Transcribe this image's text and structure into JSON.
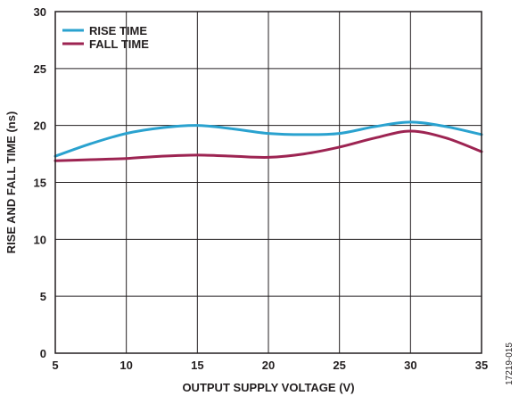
{
  "chart_data": {
    "type": "line",
    "xlabel": "OUTPUT SUPPLY VOLTAGE (V)",
    "ylabel": "RISE AND FALL TIME (ns)",
    "xlim": [
      5,
      35
    ],
    "ylim": [
      0,
      30
    ],
    "xticks": [
      "5",
      "10",
      "15",
      "20",
      "25",
      "30",
      "35"
    ],
    "yticks": [
      "0",
      "5",
      "10",
      "15",
      "20",
      "25",
      "30"
    ],
    "grid": true,
    "legend_position": "top-left",
    "figure_id": "17219-015",
    "series": [
      {
        "name": "RISE TIME",
        "color": "#2aa2cf",
        "x": [
          5,
          7.5,
          10,
          12.5,
          15,
          17.5,
          20,
          22.5,
          25,
          27.5,
          30,
          32.5,
          35
        ],
        "y": [
          17.3,
          18.4,
          19.3,
          19.8,
          20.0,
          19.7,
          19.3,
          19.2,
          19.3,
          19.9,
          20.3,
          19.9,
          19.2
        ]
      },
      {
        "name": "FALL TIME",
        "color": "#9d2452",
        "x": [
          5,
          7.5,
          10,
          12.5,
          15,
          17.5,
          20,
          22.5,
          25,
          27.5,
          30,
          32.5,
          35
        ],
        "y": [
          16.9,
          17.0,
          17.1,
          17.3,
          17.4,
          17.3,
          17.2,
          17.5,
          18.1,
          18.9,
          19.5,
          18.9,
          17.7
        ]
      }
    ]
  }
}
